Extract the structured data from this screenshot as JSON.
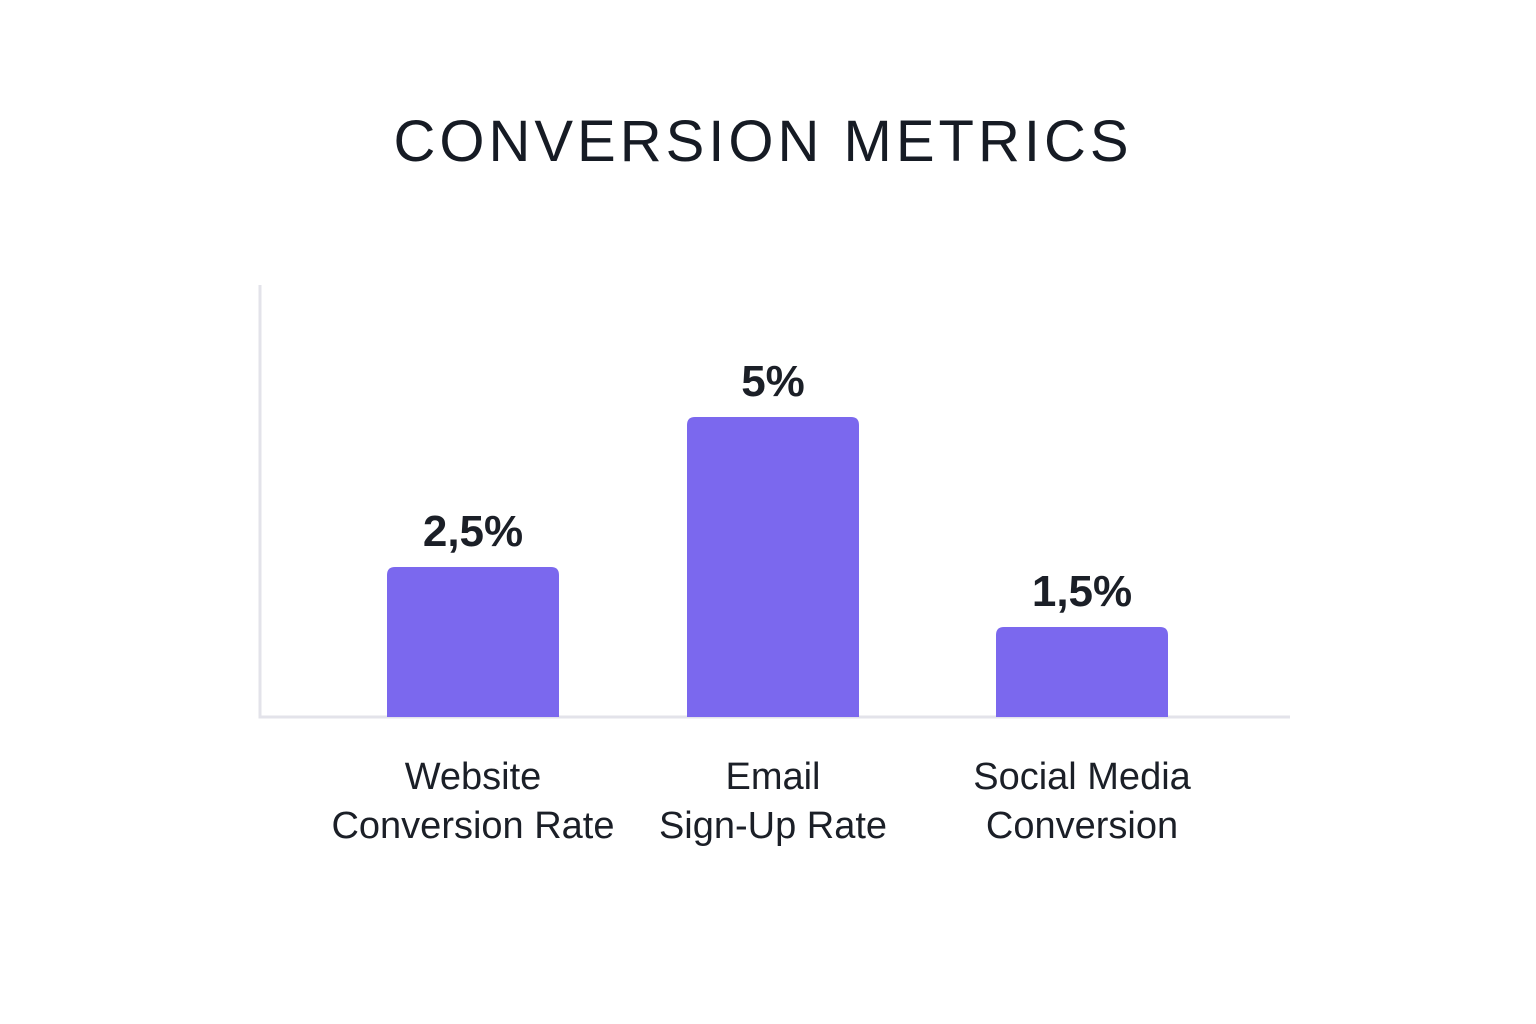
{
  "chart_data": {
    "type": "bar",
    "title": "CONVERSION METRICS",
    "categories": [
      [
        "Website",
        "Conversion Rate"
      ],
      [
        "Email",
        "Sign-Up Rate"
      ],
      [
        "Social Media",
        "Conversion"
      ]
    ],
    "values": [
      2.5,
      5,
      1.5
    ],
    "value_labels": [
      "2,5%",
      "5%",
      "1,5%"
    ],
    "xlabel": "",
    "ylabel": "",
    "ylim": [
      0,
      7.2
    ],
    "grid": false,
    "bar_color": "#7b68ee",
    "axis_color": "#e3e3ea",
    "text_color": "#1b1f27"
  }
}
